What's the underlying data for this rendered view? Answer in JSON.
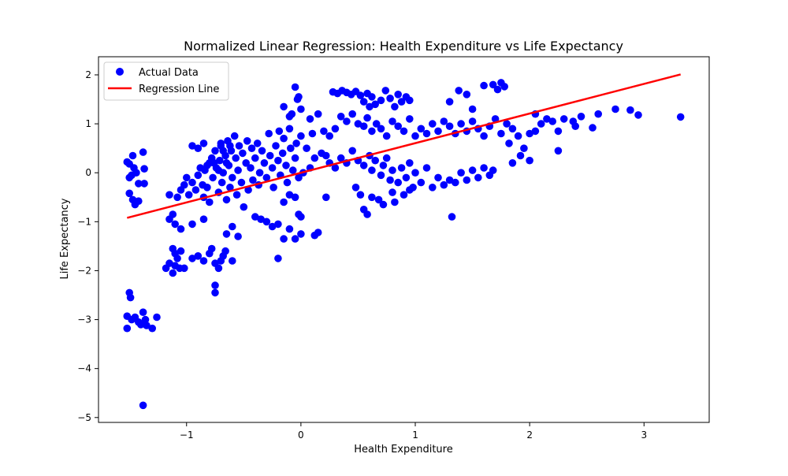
{
  "chart_data": {
    "type": "scatter",
    "title": "Normalized Linear Regression: Health Expenditure vs Life Expectancy",
    "xlabel": "Health Expenditure",
    "ylabel": "Life Expectancy",
    "xlim": [
      -1.77,
      3.57
    ],
    "ylim": [
      -5.1,
      2.37
    ],
    "xticks": [
      -1,
      0,
      1,
      2,
      3
    ],
    "yticks": [
      -5,
      -4,
      -3,
      -2,
      -1,
      0,
      1,
      2
    ],
    "legend_position": "top-left",
    "series": [
      {
        "name": "Actual Data",
        "kind": "scatter",
        "color": "#0000ff",
        "points": [
          [
            -1.52,
            0.22
          ],
          [
            -1.5,
            0.18
          ],
          [
            -1.47,
            0.35
          ],
          [
            -1.46,
            0.1
          ],
          [
            -1.44,
            0.0
          ],
          [
            -1.5,
            -0.1
          ],
          [
            -1.48,
            -0.05
          ],
          [
            -1.42,
            -0.22
          ],
          [
            -1.38,
            0.42
          ],
          [
            -1.37,
            0.08
          ],
          [
            -1.37,
            -0.22
          ],
          [
            -1.5,
            -0.42
          ],
          [
            -1.47,
            -0.55
          ],
          [
            -1.45,
            -0.65
          ],
          [
            -1.42,
            -0.58
          ],
          [
            -1.5,
            -2.45
          ],
          [
            -1.49,
            -2.55
          ],
          [
            -1.52,
            -2.93
          ],
          [
            -1.48,
            -3.0
          ],
          [
            -1.45,
            -2.95
          ],
          [
            -1.42,
            -3.05
          ],
          [
            -1.4,
            -3.1
          ],
          [
            -1.38,
            -2.85
          ],
          [
            -1.36,
            -3.0
          ],
          [
            -1.35,
            -3.12
          ],
          [
            -1.3,
            -3.18
          ],
          [
            -1.26,
            -2.95
          ],
          [
            -1.52,
            -3.18
          ],
          [
            -1.38,
            -4.75
          ],
          [
            -1.18,
            -1.95
          ],
          [
            -1.15,
            -1.85
          ],
          [
            -1.12,
            -2.05
          ],
          [
            -1.1,
            -1.9
          ],
          [
            -1.08,
            -1.75
          ],
          [
            -1.06,
            -1.95
          ],
          [
            -1.05,
            -1.6
          ],
          [
            -1.02,
            -1.95
          ],
          [
            -1.1,
            -1.65
          ],
          [
            -1.12,
            -1.55
          ],
          [
            -0.95,
            -1.75
          ],
          [
            -0.9,
            -1.7
          ],
          [
            -0.85,
            -1.8
          ],
          [
            -0.8,
            -1.65
          ],
          [
            -0.78,
            -1.55
          ],
          [
            -0.75,
            -1.85
          ],
          [
            -0.72,
            -1.95
          ],
          [
            -0.7,
            -1.8
          ],
          [
            -0.68,
            -1.7
          ],
          [
            -0.66,
            -1.6
          ],
          [
            -0.6,
            -1.8
          ],
          [
            -1.15,
            -0.95
          ],
          [
            -1.1,
            -1.05
          ],
          [
            -1.05,
            -1.15
          ],
          [
            -1.12,
            -0.85
          ],
          [
            -0.95,
            -1.05
          ],
          [
            -0.85,
            -0.95
          ],
          [
            -0.75,
            -2.3
          ],
          [
            -0.75,
            -2.45
          ],
          [
            -0.65,
            -1.25
          ],
          [
            -0.6,
            -1.1
          ],
          [
            -0.55,
            -1.3
          ],
          [
            -0.4,
            -0.9
          ],
          [
            -1.15,
            -0.45
          ],
          [
            -1.08,
            -0.5
          ],
          [
            -1.05,
            -0.35
          ],
          [
            -1.02,
            -0.25
          ],
          [
            -1.0,
            -0.1
          ],
          [
            -0.98,
            -0.45
          ],
          [
            -0.95,
            -0.2
          ],
          [
            -0.92,
            -0.35
          ],
          [
            -0.9,
            -0.05
          ],
          [
            -0.88,
            0.1
          ],
          [
            -0.86,
            -0.25
          ],
          [
            -0.85,
            -0.5
          ],
          [
            -0.84,
            0.05
          ],
          [
            -0.82,
            -0.3
          ],
          [
            -0.8,
            0.2
          ],
          [
            -0.8,
            -0.6
          ],
          [
            -0.78,
            0.3
          ],
          [
            -0.77,
            -0.1
          ],
          [
            -0.75,
            0.45
          ],
          [
            -0.74,
            0.1
          ],
          [
            -0.72,
            -0.4
          ],
          [
            -0.71,
            0.25
          ],
          [
            -0.7,
            0.55
          ],
          [
            -0.69,
            -0.2
          ],
          [
            -0.68,
            0.0
          ],
          [
            -0.66,
            0.35
          ],
          [
            -0.65,
            -0.55
          ],
          [
            -0.64,
            0.65
          ],
          [
            -0.63,
            0.15
          ],
          [
            -0.62,
            -0.3
          ],
          [
            -0.61,
            0.45
          ],
          [
            -0.6,
            -0.1
          ],
          [
            -0.58,
            0.75
          ],
          [
            -0.57,
            0.3
          ],
          [
            -0.56,
            -0.45
          ],
          [
            -0.55,
            0.05
          ],
          [
            -0.54,
            0.55
          ],
          [
            -0.52,
            -0.2
          ],
          [
            -0.51,
            0.4
          ],
          [
            -0.5,
            -0.7
          ],
          [
            -0.48,
            0.2
          ],
          [
            -0.47,
            0.65
          ],
          [
            -0.46,
            -0.35
          ],
          [
            -0.44,
            0.1
          ],
          [
            -0.43,
            0.5
          ],
          [
            -0.42,
            -0.15
          ],
          [
            -0.4,
            0.3
          ],
          [
            -0.38,
            0.6
          ],
          [
            -0.37,
            -0.25
          ],
          [
            -0.36,
            0.0
          ],
          [
            -0.34,
            0.45
          ],
          [
            -0.32,
            0.2
          ],
          [
            -0.3,
            -0.1
          ],
          [
            -0.28,
            0.8
          ],
          [
            -0.27,
            0.35
          ],
          [
            -0.25,
            0.1
          ],
          [
            -0.24,
            -0.3
          ],
          [
            -0.22,
            0.55
          ],
          [
            -0.2,
            0.25
          ],
          [
            -0.19,
            0.85
          ],
          [
            -0.18,
            -0.05
          ],
          [
            -0.16,
            0.4
          ],
          [
            -0.15,
            0.7
          ],
          [
            -0.13,
            0.15
          ],
          [
            -0.12,
            -0.2
          ],
          [
            -0.1,
            0.9
          ],
          [
            -0.09,
            0.5
          ],
          [
            -0.07,
            0.05
          ],
          [
            -0.05,
            0.3
          ],
          [
            -0.04,
            0.6
          ],
          [
            -0.02,
            -0.1
          ],
          [
            0.0,
            0.75
          ],
          [
            -0.9,
            0.5
          ],
          [
            -0.85,
            0.6
          ],
          [
            -0.95,
            0.55
          ],
          [
            -0.7,
            0.6
          ],
          [
            -0.68,
            0.45
          ],
          [
            -0.62,
            0.55
          ],
          [
            -0.65,
            0.2
          ],
          [
            -0.72,
            0.05
          ],
          [
            -0.76,
            0.2
          ],
          [
            -0.82,
            0.15
          ],
          [
            -0.35,
            -0.95
          ],
          [
            -0.3,
            -1.0
          ],
          [
            -0.25,
            -1.1
          ],
          [
            -0.2,
            -1.05
          ],
          [
            -0.15,
            -1.35
          ],
          [
            -0.1,
            -1.15
          ],
          [
            -0.05,
            -1.35
          ],
          [
            -0.2,
            -1.75
          ],
          [
            0.0,
            -1.25
          ],
          [
            0.12,
            -1.28
          ],
          [
            0.15,
            -1.22
          ],
          [
            -0.15,
            -0.6
          ],
          [
            -0.1,
            -0.45
          ],
          [
            -0.05,
            -0.5
          ],
          [
            0.0,
            -0.9
          ],
          [
            -0.02,
            -0.85
          ],
          [
            -0.05,
            1.75
          ],
          [
            -0.03,
            1.5
          ],
          [
            -0.02,
            1.55
          ],
          [
            0.0,
            1.3
          ],
          [
            -0.1,
            1.15
          ],
          [
            -0.15,
            1.35
          ],
          [
            -0.08,
            1.2
          ],
          [
            0.08,
            1.1
          ],
          [
            0.15,
            1.2
          ],
          [
            0.1,
            0.8
          ],
          [
            0.2,
            0.85
          ],
          [
            0.25,
            0.75
          ],
          [
            0.3,
            0.9
          ],
          [
            0.05,
            0.5
          ],
          [
            0.12,
            0.3
          ],
          [
            0.18,
            0.4
          ],
          [
            0.22,
            0.35
          ],
          [
            0.25,
            0.2
          ],
          [
            0.08,
            0.1
          ],
          [
            0.02,
            0.0
          ],
          [
            0.22,
            -0.5
          ],
          [
            0.3,
            0.1
          ],
          [
            0.28,
            1.65
          ],
          [
            0.32,
            1.62
          ],
          [
            0.36,
            1.68
          ],
          [
            0.4,
            1.64
          ],
          [
            0.44,
            1.6
          ],
          [
            0.48,
            1.66
          ],
          [
            0.52,
            1.58
          ],
          [
            0.55,
            1.45
          ],
          [
            0.58,
            1.62
          ],
          [
            0.6,
            1.35
          ],
          [
            0.62,
            1.55
          ],
          [
            0.65,
            1.4
          ],
          [
            0.7,
            1.48
          ],
          [
            0.74,
            1.68
          ],
          [
            0.78,
            1.52
          ],
          [
            0.82,
            1.35
          ],
          [
            0.85,
            1.6
          ],
          [
            0.88,
            1.45
          ],
          [
            0.92,
            1.55
          ],
          [
            0.95,
            1.48
          ],
          [
            0.35,
            1.15
          ],
          [
            0.4,
            1.05
          ],
          [
            0.45,
            1.2
          ],
          [
            0.5,
            1.0
          ],
          [
            0.55,
            0.95
          ],
          [
            0.58,
            1.12
          ],
          [
            0.62,
            0.85
          ],
          [
            0.66,
            1.0
          ],
          [
            0.7,
            0.9
          ],
          [
            0.75,
            0.75
          ],
          [
            0.8,
            1.05
          ],
          [
            0.85,
            0.95
          ],
          [
            0.9,
            0.85
          ],
          [
            0.95,
            1.1
          ],
          [
            0.35,
            0.3
          ],
          [
            0.4,
            0.2
          ],
          [
            0.45,
            0.45
          ],
          [
            0.5,
            0.25
          ],
          [
            0.55,
            0.15
          ],
          [
            0.6,
            0.35
          ],
          [
            0.62,
            0.05
          ],
          [
            0.65,
            0.25
          ],
          [
            0.7,
            -0.05
          ],
          [
            0.72,
            0.15
          ],
          [
            0.75,
            0.3
          ],
          [
            0.78,
            -0.15
          ],
          [
            0.8,
            0.05
          ],
          [
            0.85,
            -0.2
          ],
          [
            0.88,
            0.1
          ],
          [
            0.92,
            -0.1
          ],
          [
            0.95,
            0.2
          ],
          [
            0.98,
            -0.3
          ],
          [
            0.48,
            -0.3
          ],
          [
            0.52,
            -0.45
          ],
          [
            0.55,
            -0.75
          ],
          [
            0.58,
            -0.85
          ],
          [
            0.62,
            -0.5
          ],
          [
            0.68,
            -0.55
          ],
          [
            0.72,
            -0.65
          ],
          [
            0.8,
            -0.4
          ],
          [
            0.82,
            -0.6
          ],
          [
            0.9,
            -0.45
          ],
          [
            0.95,
            -0.35
          ],
          [
            1.0,
            0.0
          ],
          [
            1.05,
            -0.2
          ],
          [
            1.1,
            0.1
          ],
          [
            1.15,
            -0.3
          ],
          [
            1.2,
            -0.1
          ],
          [
            1.25,
            -0.25
          ],
          [
            1.3,
            -0.15
          ],
          [
            1.35,
            -0.2
          ],
          [
            1.4,
            0.0
          ],
          [
            1.45,
            -0.15
          ],
          [
            1.5,
            0.05
          ],
          [
            1.55,
            -0.1
          ],
          [
            1.6,
            0.1
          ],
          [
            1.65,
            -0.05
          ],
          [
            1.68,
            0.05
          ],
          [
            1.32,
            -0.9
          ],
          [
            1.0,
            0.75
          ],
          [
            1.05,
            0.9
          ],
          [
            1.1,
            0.8
          ],
          [
            1.15,
            1.0
          ],
          [
            1.2,
            0.85
          ],
          [
            1.25,
            1.05
          ],
          [
            1.3,
            0.95
          ],
          [
            1.35,
            0.8
          ],
          [
            1.4,
            1.0
          ],
          [
            1.45,
            0.85
          ],
          [
            1.5,
            1.05
          ],
          [
            1.55,
            0.9
          ],
          [
            1.6,
            0.75
          ],
          [
            1.65,
            0.95
          ],
          [
            1.7,
            1.1
          ],
          [
            1.75,
            0.8
          ],
          [
            1.8,
            1.0
          ],
          [
            1.85,
            0.9
          ],
          [
            1.3,
            1.45
          ],
          [
            1.38,
            1.68
          ],
          [
            1.45,
            1.6
          ],
          [
            1.5,
            1.3
          ],
          [
            1.6,
            1.78
          ],
          [
            1.68,
            1.8
          ],
          [
            1.72,
            1.7
          ],
          [
            1.75,
            1.84
          ],
          [
            1.78,
            1.76
          ],
          [
            1.82,
            0.6
          ],
          [
            1.9,
            0.75
          ],
          [
            1.95,
            0.5
          ],
          [
            2.0,
            0.8
          ],
          [
            1.85,
            0.2
          ],
          [
            1.92,
            0.35
          ],
          [
            2.0,
            0.25
          ],
          [
            2.05,
            0.85
          ],
          [
            2.1,
            1.0
          ],
          [
            2.05,
            1.2
          ],
          [
            2.15,
            1.1
          ],
          [
            2.2,
            1.05
          ],
          [
            2.25,
            0.85
          ],
          [
            2.25,
            0.45
          ],
          [
            2.3,
            1.1
          ],
          [
            2.38,
            1.05
          ],
          [
            2.4,
            0.95
          ],
          [
            2.45,
            1.15
          ],
          [
            2.55,
            0.92
          ],
          [
            2.6,
            1.2
          ],
          [
            2.75,
            1.3
          ],
          [
            2.88,
            1.28
          ],
          [
            2.95,
            1.18
          ],
          [
            3.32,
            1.14
          ]
        ]
      },
      {
        "name": "Regression Line",
        "kind": "line",
        "color": "#ff0000",
        "points": [
          [
            -1.52,
            -0.92
          ],
          [
            3.32,
            2.01
          ]
        ]
      }
    ]
  }
}
